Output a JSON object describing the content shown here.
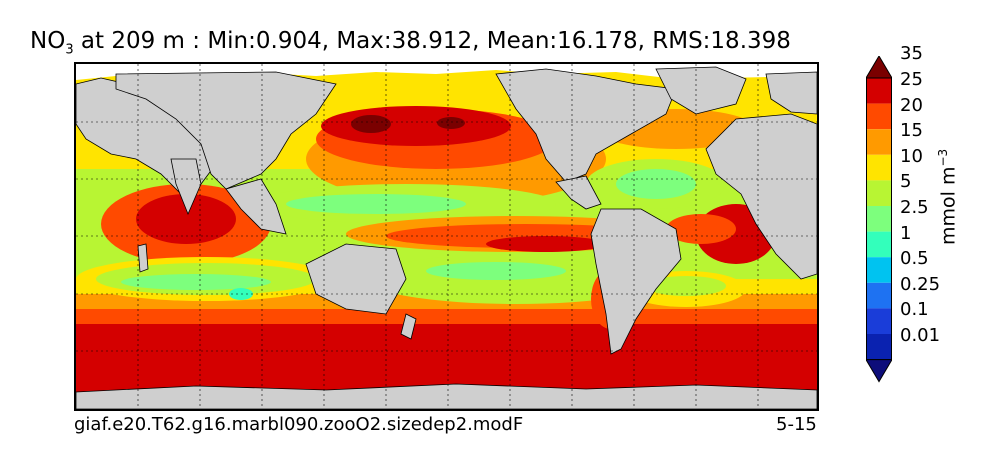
{
  "title": {
    "species": "NO",
    "subscript": "3",
    "rest": " at 209 m : Min:0.904, Max:38.912, Mean:16.178, RMS:18.398"
  },
  "footer": {
    "case_name": "giaf.e20.T62.g16.marbl090.zooO2.sizedep2.modF",
    "years": "5-15"
  },
  "colorbar": {
    "units_base": "mmol m",
    "units_exp": "−3",
    "levels": [
      "0.01",
      "0.1",
      "0.25",
      "0.5",
      "1",
      "2.5",
      "5",
      "10",
      "15",
      "20",
      "25",
      "35"
    ],
    "colors": [
      "#0d0d7a",
      "#0a22b0",
      "#1a3dd9",
      "#1e72f2",
      "#00c3f0",
      "#33ffbb",
      "#7dff7d",
      "#b8f533",
      "#ffe400",
      "#ff9a00",
      "#ff4a00",
      "#d40000",
      "#7a0000"
    ]
  },
  "chart_data": {
    "type": "heatmap",
    "title": "NO3 at 209 m : Min:0.904, Max:38.912, Mean:16.178, RMS:18.398",
    "variable": "NO3",
    "depth": "209 m",
    "stats": {
      "min": 0.904,
      "max": 38.912,
      "mean": 16.178,
      "rms": 18.398
    },
    "units": "mmol m-3",
    "contour_levels": [
      0.01,
      0.1,
      0.25,
      0.5,
      1,
      2.5,
      5,
      10,
      15,
      20,
      25,
      35
    ],
    "grid": true,
    "colorbar_placement": "right",
    "land_color": "#cfcfcf"
  }
}
